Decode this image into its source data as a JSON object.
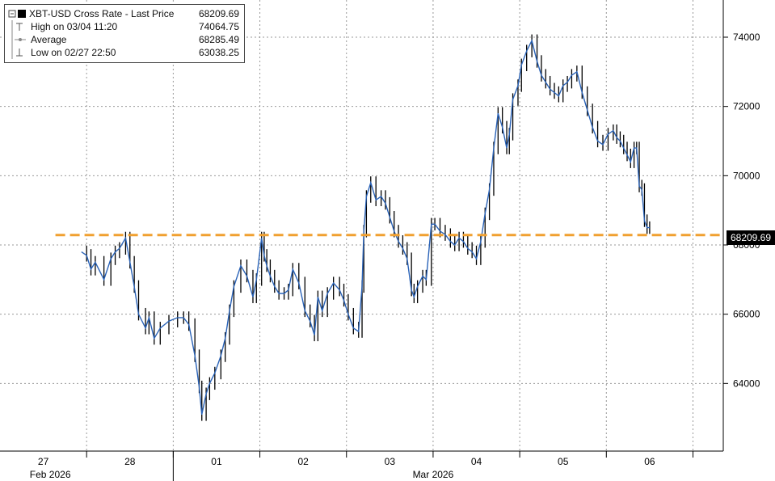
{
  "legend": {
    "series_label": "XBT-USD Cross Rate - Last Price",
    "series_value": "68209.69",
    "high_label": "High on 03/04 11:20",
    "high_value": "74064.75",
    "avg_label": "Average",
    "avg_value": "68285.49",
    "low_label": "Low on 02/27 22:50",
    "low_value": "63038.25"
  },
  "last_price_label": "68209.69",
  "colors": {
    "line": "#2a63b8",
    "candle": "#000000",
    "avg_line": "#f0a030",
    "grid": "#999999"
  },
  "chart_data": {
    "type": "line",
    "title": "XBT-USD Cross Rate - Last Price",
    "xlabel": "",
    "ylabel": "",
    "ylim": [
      62000,
      75000
    ],
    "yticks": [
      64000,
      66000,
      68000,
      70000,
      72000,
      74000
    ],
    "x_tick_labels": [
      "27",
      "28",
      "01",
      "02",
      "03",
      "04",
      "05",
      "06"
    ],
    "x_period_labels": [
      "Feb 2026",
      "Mar 2026"
    ],
    "grid": true,
    "average": 68285.49,
    "last": 68209.69,
    "high": {
      "value": 74064.75,
      "time": "03/04 11:20"
    },
    "low": {
      "value": 63038.25,
      "time": "02/27 22:50"
    },
    "x_unit": "days from Feb 26 00:00",
    "series": [
      {
        "name": "XBT-USD Cross Rate - Last Price",
        "x": [
          0.94,
          1.0,
          1.05,
          1.1,
          1.2,
          1.28,
          1.33,
          1.38,
          1.45,
          1.5,
          1.55,
          1.6,
          1.68,
          1.72,
          1.78,
          1.85,
          1.95,
          2.05,
          2.12,
          2.18,
          2.25,
          2.3,
          2.33,
          2.38,
          2.42,
          2.48,
          2.55,
          2.6,
          2.65,
          2.7,
          2.78,
          2.85,
          2.92,
          2.96,
          3.02,
          3.05,
          3.08,
          3.12,
          3.17,
          3.22,
          3.28,
          3.33,
          3.38,
          3.45,
          3.52,
          3.58,
          3.63,
          3.67,
          3.72,
          3.78,
          3.85,
          3.92,
          3.97,
          4.02,
          4.08,
          4.14,
          4.18,
          4.2,
          4.23,
          4.28,
          4.34,
          4.4,
          4.45,
          4.5,
          4.55,
          4.6,
          4.65,
          4.7,
          4.75,
          4.78,
          4.82,
          4.88,
          4.92,
          4.98,
          5.02,
          5.08,
          5.14,
          5.2,
          5.25,
          5.3,
          5.35,
          5.4,
          5.45,
          5.5,
          5.55,
          5.6,
          5.65,
          5.7,
          5.75,
          5.8,
          5.85,
          5.88,
          5.92,
          5.98,
          6.02,
          6.08,
          6.14,
          6.2,
          6.25,
          6.3,
          6.35,
          6.4,
          6.45,
          6.5,
          6.55,
          6.6,
          6.66,
          6.72,
          6.78,
          6.84,
          6.9,
          6.96,
          7.02,
          7.08,
          7.12,
          7.16,
          7.2,
          7.24,
          7.28,
          7.32,
          7.35,
          7.38,
          7.41,
          7.44,
          7.47,
          7.5
        ],
        "values": [
          67800,
          67700,
          67300,
          67500,
          67000,
          67600,
          67800,
          67900,
          68200,
          67500,
          66800,
          66000,
          65600,
          65900,
          65300,
          65600,
          65800,
          65900,
          65900,
          65700,
          64800,
          63900,
          63100,
          63700,
          64000,
          64300,
          64800,
          65300,
          66100,
          66800,
          67400,
          67100,
          66500,
          67000,
          68200,
          67700,
          67400,
          67100,
          66800,
          66600,
          66600,
          66700,
          67300,
          66900,
          66100,
          65800,
          65400,
          66500,
          66100,
          66600,
          66900,
          66700,
          66400,
          66000,
          65600,
          65500,
          66800,
          68400,
          69400,
          69800,
          69300,
          69400,
          69200,
          68800,
          68400,
          68100,
          67900,
          67600,
          66700,
          66500,
          66800,
          67100,
          67000,
          68600,
          68600,
          68400,
          68300,
          68100,
          68000,
          68200,
          68100,
          67900,
          67800,
          67600,
          68100,
          68900,
          69600,
          70800,
          71800,
          71400,
          70800,
          71200,
          72200,
          72600,
          73200,
          73600,
          73900,
          73300,
          72900,
          72700,
          72500,
          72400,
          72300,
          72600,
          72700,
          72900,
          73000,
          72400,
          71900,
          71400,
          71000,
          70900,
          71200,
          71300,
          71100,
          71000,
          70800,
          70600,
          70400,
          70800,
          70800,
          69700,
          69600,
          68700,
          68500,
          68500
        ]
      }
    ]
  }
}
